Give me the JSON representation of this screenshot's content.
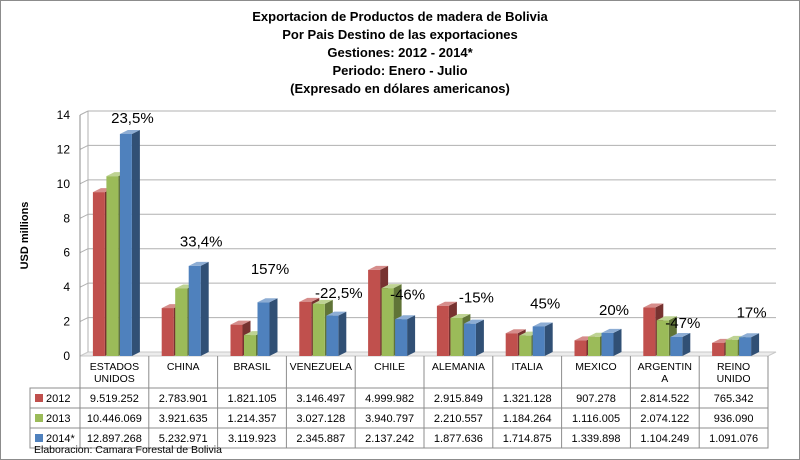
{
  "title_lines": [
    "Exportacion de Productos de madera de Bolivia",
    "Por Pais Destino  de las exportaciones",
    "Gestiones: 2012 - 2014*",
    "Periodo: Enero - Julio",
    "(Expresado en dólares americanos)"
  ],
  "footer": "Elaboracion: Camara Forestal de Bolivia",
  "colors": {
    "2012": "#c0504d",
    "2013": "#9bbb59",
    "2014*": "#4f81bd"
  },
  "chart_data": {
    "type": "bar",
    "style": "3d-clustered-column",
    "ylabel": "USD millions",
    "ylim": [
      0,
      14
    ],
    "yticks": [
      0,
      2,
      4,
      6,
      8,
      10,
      12,
      14
    ],
    "grid": true,
    "categories": [
      "ESTADOS UNIDOS",
      "CHINA",
      "BRASIL",
      "VENEZUELA",
      "CHILE",
      "ALEMANIA",
      "ITALIA",
      "MEXICO",
      "ARGENTINA",
      "REINO UNIDO"
    ],
    "category_label_lines": [
      [
        "ESTADOS",
        "UNIDOS"
      ],
      [
        "CHINA"
      ],
      [
        "BRASIL"
      ],
      [
        "VENEZUELA"
      ],
      [
        "CHILE"
      ],
      [
        "ALEMANIA"
      ],
      [
        "ITALIA"
      ],
      [
        "MEXICO"
      ],
      [
        "ARGENTIN",
        "A"
      ],
      [
        "REINO",
        "UNIDO"
      ]
    ],
    "series": [
      {
        "name": "2012",
        "values": [
          9.519252,
          2.783901,
          1.821105,
          3.146497,
          4.999982,
          2.915849,
          1.321128,
          0.907278,
          2.814522,
          0.765342
        ],
        "table": [
          "9.519.252",
          "2.783.901",
          "1.821.105",
          "3.146.497",
          "4.999.982",
          "2.915.849",
          "1.321.128",
          "907.278",
          "2.814.522",
          "765.342"
        ]
      },
      {
        "name": "2013",
        "values": [
          10.446069,
          3.921635,
          1.214357,
          3.027128,
          3.940797,
          2.210557,
          1.184264,
          1.116005,
          2.074122,
          0.93609
        ],
        "table": [
          "10.446.069",
          "3.921.635",
          "1.214.357",
          "3.027.128",
          "3.940.797",
          "2.210.557",
          "1.184.264",
          "1.116.005",
          "2.074.122",
          "936.090"
        ]
      },
      {
        "name": "2014*",
        "values": [
          12.897268,
          5.232971,
          3.119923,
          2.345887,
          2.137242,
          1.877636,
          1.714875,
          1.339898,
          1.104249,
          1.091076
        ],
        "table": [
          "12.897.268",
          "5.232.971",
          "3.119.923",
          "2.345.887",
          "2.137.242",
          "1.877.636",
          "1.714.875",
          "1.339.898",
          "1.104.249",
          "1.091.076"
        ]
      }
    ],
    "annotations": [
      "23,5%",
      "33,4%",
      "157%",
      "-22,5%",
      "-46%",
      "-15%",
      "45%",
      "20%",
      "-47%",
      "17%"
    ],
    "annotation_value_offsets": [
      0.4,
      0.9,
      1.4,
      0.8,
      0.9,
      1.0,
      0.8,
      0.8,
      0.3,
      0.9
    ]
  }
}
